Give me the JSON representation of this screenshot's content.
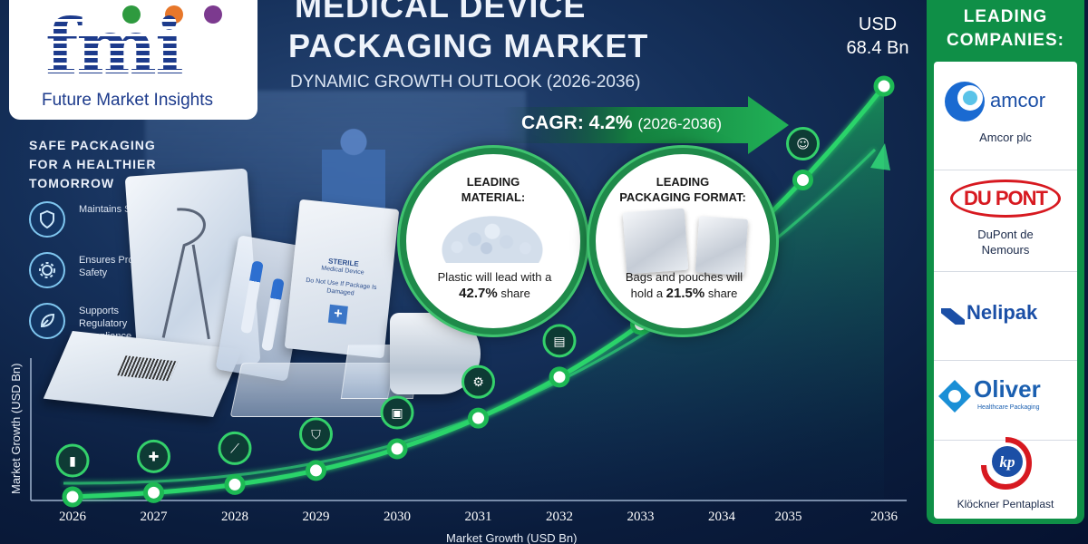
{
  "brand": {
    "logo_text": "fmi",
    "name": "Future Market Insights"
  },
  "title": {
    "line1": "MEDICAL DEVICE",
    "line2": "PACKAGING MARKET",
    "subtitle": "DYNAMIC GROWTH OUTLOOK (2026-2036)"
  },
  "cagr": {
    "label": "CAGR: 4.2%",
    "period": "(2026-2036)"
  },
  "end_value": {
    "line1": "USD",
    "line2": "68.4 Bn"
  },
  "tagline": "SAFE PACKAGING FOR A HEALTHIER TOMORROW",
  "features": [
    {
      "icon": "shield-icon",
      "label": "Maintains Sterility"
    },
    {
      "icon": "gear-icon",
      "label": "Ensures Product Safety"
    },
    {
      "icon": "leaf-icon",
      "label": "Supports Regulatory Compliance"
    }
  ],
  "product_labels": {
    "sterile": "STERILE",
    "device": "Medical Device",
    "warning": "Do Not Use If Package Is Damaged"
  },
  "highlights": {
    "material": {
      "heading1": "LEADING",
      "heading2": "MATERIAL:",
      "text": "Plastic will lead with a",
      "value": "42.7%",
      "suffix": "share"
    },
    "format": {
      "heading1": "LEADING",
      "heading2": "PACKAGING FORMAT:",
      "text1": "Bags and pouches will",
      "text2": "hold a",
      "value": "21.5%",
      "suffix": "share"
    }
  },
  "chart_data": {
    "type": "line",
    "title": "",
    "xlabel": "Market Growth (USD Bn)",
    "ylabel": "Market Growth (USD Bn)",
    "x": [
      "2026",
      "2027",
      "2028",
      "2029",
      "2030",
      "2031",
      "2032",
      "2033",
      "2034",
      "2035",
      "2036"
    ],
    "values": [
      null,
      null,
      null,
      null,
      null,
      null,
      null,
      null,
      null,
      null,
      68.4
    ],
    "point_icons": [
      "bar-chart-icon",
      "medical-kit-icon",
      "syringe-icon",
      "shield-icon",
      "box-icon",
      "gear-icon",
      "clipboard-icon",
      "hospital-icon",
      "dna-icon",
      "people-icon",
      "people-icon"
    ],
    "unit": "USD Bn",
    "grid": false,
    "legend": "none"
  },
  "companies": {
    "title_line1": "LEADING",
    "title_line2": "COMPANIES:",
    "items": [
      {
        "logo": "amcor",
        "name": "Amcor plc"
      },
      {
        "logo": "DU PONT",
        "name": "DuPont de Nemours"
      },
      {
        "logo": "Nelipak",
        "name": ""
      },
      {
        "logo": "Oliver",
        "logo_sub": "Healthcare Packaging",
        "name": ""
      },
      {
        "logo": "kp",
        "name": "Klöckner Pentaplast"
      }
    ]
  },
  "colors": {
    "accent_green": "#1db954",
    "panel_green": "#0f8f47",
    "navy": "#0a1c3c",
    "brand_blue": "#1d3b8c"
  }
}
